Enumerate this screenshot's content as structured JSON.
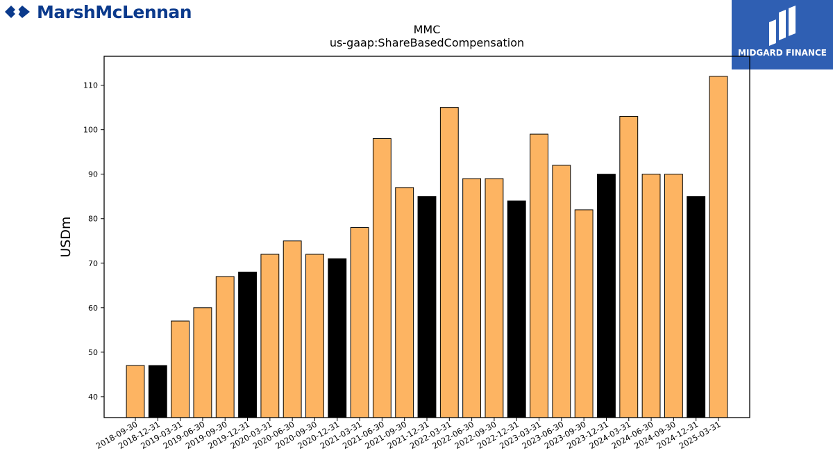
{
  "brand": {
    "name": "MarshMcLennan"
  },
  "partner": {
    "name": "MIDGARD FINANCE"
  },
  "chart_data": {
    "type": "bar",
    "title": "MMC",
    "subtitle": "us-gaap:ShareBasedCompensation",
    "xlabel": "",
    "ylabel": "USDm",
    "ylim": [
      35.3,
      116.5
    ],
    "yticks": [
      40,
      50,
      60,
      70,
      80,
      90,
      100,
      110
    ],
    "grid": false,
    "colors": {
      "default": "#fdb462",
      "highlight": "#000000",
      "edge": "#000000"
    },
    "categories": [
      "2018-09-30",
      "2018-12-31",
      "2019-03-31",
      "2019-06-30",
      "2019-09-30",
      "2019-12-31",
      "2020-03-31",
      "2020-06-30",
      "2020-09-30",
      "2020-12-31",
      "2021-03-31",
      "2021-06-30",
      "2021-09-30",
      "2021-12-31",
      "2022-03-31",
      "2022-06-30",
      "2022-09-30",
      "2022-12-31",
      "2023-03-31",
      "2023-06-30",
      "2023-09-30",
      "2023-12-31",
      "2024-03-31",
      "2024-06-30",
      "2024-09-30",
      "2024-12-31",
      "2025-03-31"
    ],
    "values": [
      47,
      47,
      57,
      60,
      67,
      68,
      72,
      75,
      72,
      71,
      78,
      98,
      87,
      85,
      105,
      89,
      89,
      84,
      99,
      92,
      82,
      90,
      103,
      90,
      90,
      85,
      112
    ],
    "highlight": [
      false,
      true,
      false,
      false,
      false,
      true,
      false,
      false,
      false,
      true,
      false,
      false,
      false,
      true,
      false,
      false,
      false,
      true,
      false,
      false,
      false,
      true,
      false,
      false,
      false,
      true,
      false
    ]
  }
}
